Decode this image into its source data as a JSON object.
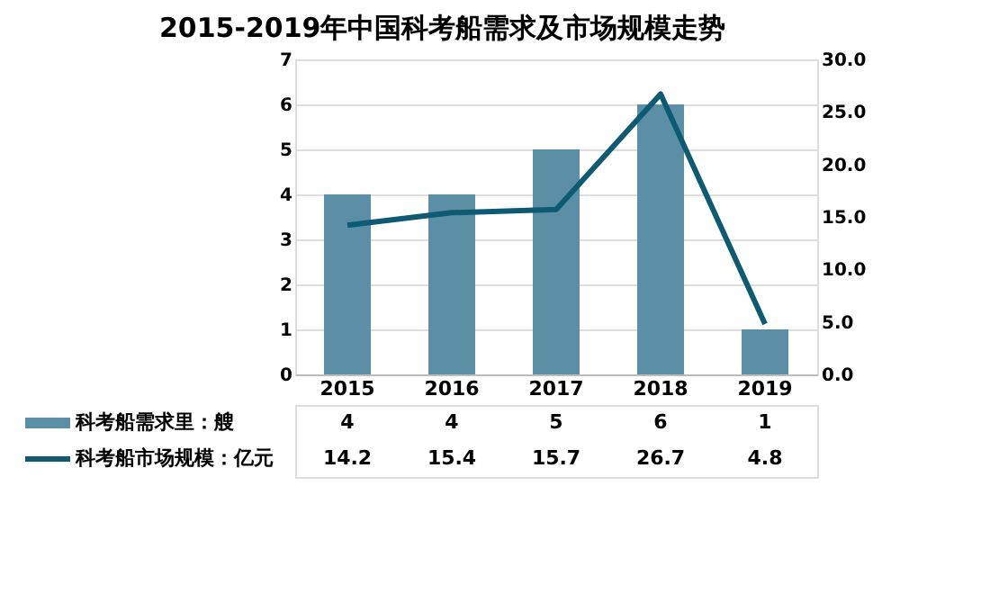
{
  "chart_data": {
    "type": "bar",
    "title": "2015-2019年中国科考船需求及市场规模走势",
    "categories": [
      "2015",
      "2016",
      "2017",
      "2018",
      "2019"
    ],
    "series": [
      {
        "name": "科考船需求里：艘",
        "type": "bar",
        "color": "#5b8fa6",
        "values": [
          4,
          4,
          5,
          6,
          1
        ]
      },
      {
        "name": "科考船市场规模：亿元",
        "type": "line",
        "axis": "y2",
        "color": "#0f5a73",
        "values": [
          14.2,
          15.4,
          15.7,
          26.7,
          4.8
        ]
      }
    ],
    "ylim": [
      0,
      7
    ],
    "yticks": [
      0,
      1,
      2,
      3,
      4,
      5,
      6,
      7
    ],
    "y2lim": [
      0,
      30
    ],
    "y2ticks": [
      {
        "value": 0,
        "label": "0.0"
      },
      {
        "value": 5,
        "label": "5.0"
      },
      {
        "value": 10,
        "label": "10.0"
      },
      {
        "value": 15,
        "label": "15.0"
      },
      {
        "value": 20,
        "label": "20.0"
      },
      {
        "value": 25,
        "label": "25.0"
      },
      {
        "value": 30,
        "label": "30.0"
      }
    ],
    "grid": "y",
    "legend": "bottom left",
    "data_labels": true
  }
}
